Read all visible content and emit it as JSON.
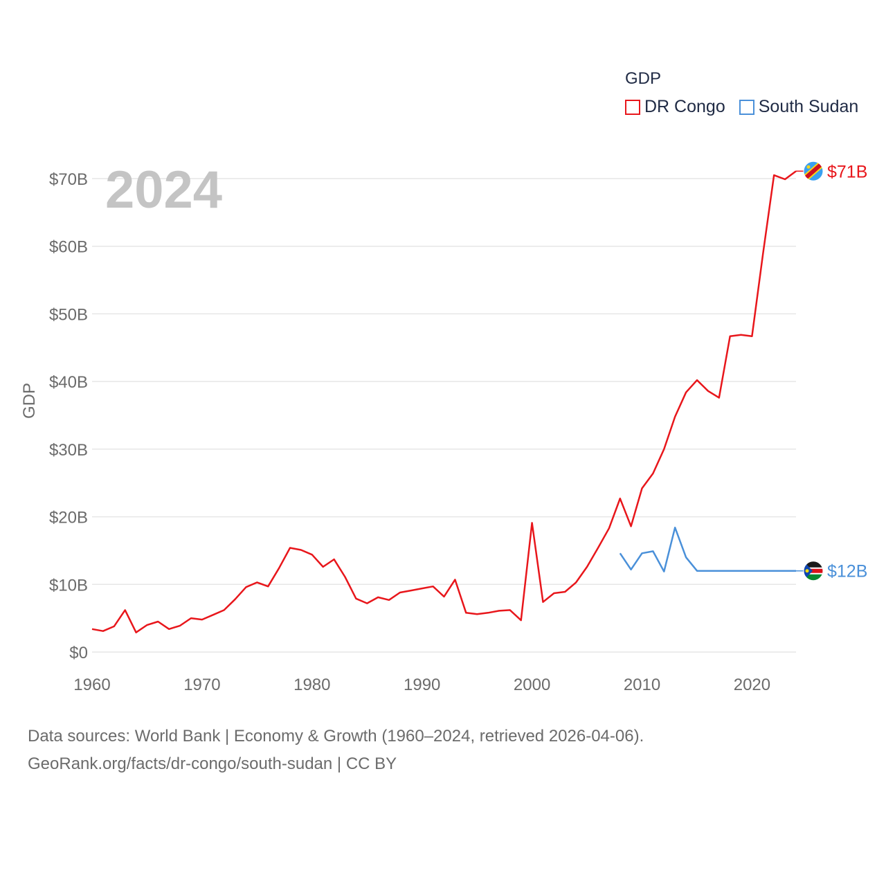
{
  "legend": {
    "title": "GDP",
    "items": [
      {
        "label": "DR Congo",
        "color": "#e8161b"
      },
      {
        "label": "South Sudan",
        "color": "#4a90d9"
      }
    ]
  },
  "year_label": "2024",
  "footer": {
    "line1": "Data sources: World Bank | Economy & Growth (1960–2024, retrieved 2026-04-06).",
    "line2": "GeoRank.org/facts/dr-congo/south-sudan | CC BY"
  },
  "chart_data": {
    "type": "line",
    "title": "",
    "xlabel": "",
    "ylabel": "GDP",
    "xlim": [
      1960,
      2024
    ],
    "ylim": [
      0,
      70
    ],
    "x_ticks": [
      1960,
      1970,
      1980,
      1990,
      2000,
      2010,
      2020
    ],
    "y_ticks": [
      0,
      10,
      20,
      30,
      40,
      50,
      60,
      70
    ],
    "y_tick_labels": [
      "$0",
      "$10B",
      "$20B",
      "$30B",
      "$40B",
      "$50B",
      "$60B",
      "$70B"
    ],
    "series": [
      {
        "name": "DR Congo",
        "color": "#e8161b",
        "end_label": "$71B",
        "flag_icon": "dr-congo-flag-icon",
        "x": [
          1960,
          1961,
          1962,
          1963,
          1964,
          1965,
          1966,
          1967,
          1968,
          1969,
          1970,
          1971,
          1972,
          1973,
          1974,
          1975,
          1976,
          1977,
          1978,
          1979,
          1980,
          1981,
          1982,
          1983,
          1984,
          1985,
          1986,
          1987,
          1988,
          1989,
          1990,
          1991,
          1992,
          1993,
          1994,
          1995,
          1996,
          1997,
          1998,
          1999,
          2000,
          2001,
          2002,
          2003,
          2004,
          2005,
          2006,
          2007,
          2008,
          2009,
          2010,
          2011,
          2012,
          2013,
          2014,
          2015,
          2016,
          2017,
          2018,
          2019,
          2020,
          2021,
          2022,
          2023,
          2024
        ],
        "values": [
          3.4,
          3.1,
          3.8,
          6.2,
          2.9,
          4.0,
          4.5,
          3.4,
          3.9,
          5.0,
          4.8,
          5.5,
          6.2,
          7.8,
          9.6,
          10.3,
          9.7,
          12.4,
          15.4,
          15.1,
          14.4,
          12.6,
          13.7,
          11.1,
          7.9,
          7.2,
          8.1,
          7.7,
          8.8,
          9.1,
          9.4,
          9.7,
          8.2,
          10.7,
          5.8,
          5.6,
          5.8,
          6.1,
          6.2,
          4.7,
          19.1,
          7.4,
          8.7,
          8.9,
          10.3,
          12.6,
          15.4,
          18.3,
          22.7,
          18.6,
          24.2,
          26.4,
          30.0,
          34.8,
          38.4,
          40.2,
          38.6,
          37.6,
          46.7,
          46.9,
          46.7,
          58.9,
          70.5,
          69.9,
          71.1
        ]
      },
      {
        "name": "South Sudan",
        "color": "#4a90d9",
        "end_label": "$12B",
        "flag_icon": "south-sudan-flag-icon",
        "x": [
          2008,
          2009,
          2010,
          2011,
          2012,
          2013,
          2014,
          2015,
          2016,
          2017,
          2018,
          2019,
          2020,
          2021,
          2022,
          2023,
          2024
        ],
        "values": [
          14.6,
          12.2,
          14.6,
          14.9,
          11.9,
          18.4,
          14.0,
          12.0,
          12.0,
          12.0,
          12.0,
          12.0,
          12.0,
          12.0,
          12.0,
          12.0,
          12.0
        ]
      }
    ]
  }
}
